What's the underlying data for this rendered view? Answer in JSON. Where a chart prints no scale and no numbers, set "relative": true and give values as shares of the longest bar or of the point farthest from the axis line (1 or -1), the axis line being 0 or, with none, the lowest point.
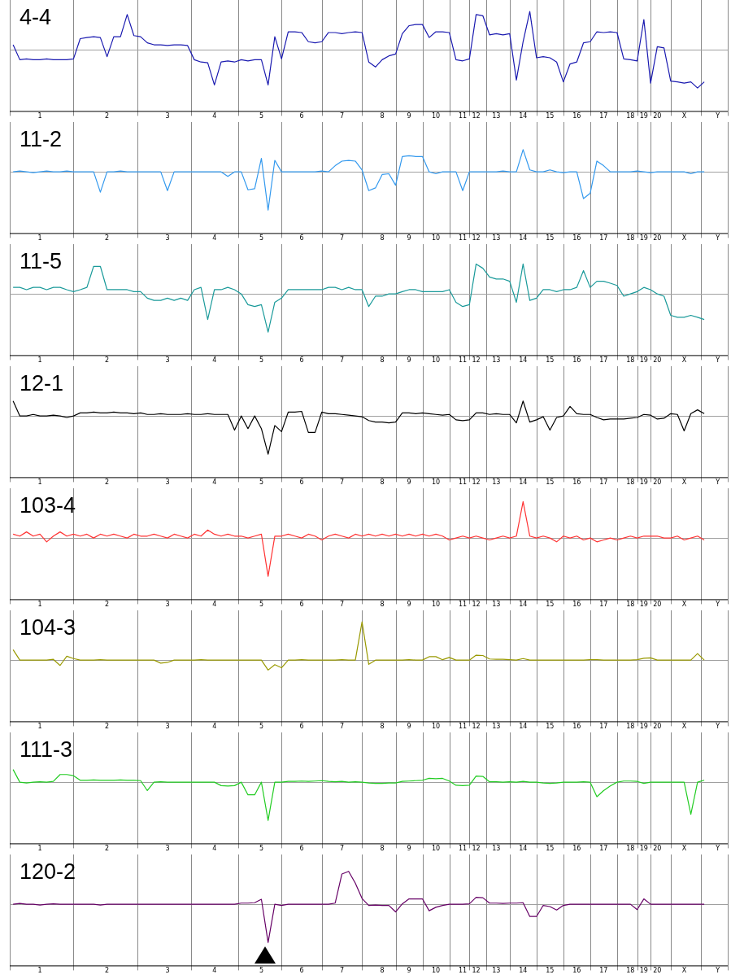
{
  "chart_data": [
    {
      "type": "line",
      "title": "4-4",
      "relative": true,
      "categories": [
        null,
        null,
        null,
        null,
        "1",
        null,
        null,
        null,
        null,
        null,
        null,
        null,
        null,
        null,
        "2",
        null,
        null,
        null,
        null,
        null,
        null,
        null,
        null,
        "3",
        null,
        null,
        null,
        null,
        null,
        null,
        "4",
        null,
        null,
        null,
        null,
        null,
        null,
        "5",
        null,
        null,
        null,
        null,
        null,
        "6",
        null,
        null,
        null,
        null,
        null,
        "7",
        null,
        null,
        null,
        null,
        null,
        "8",
        null,
        null,
        null,
        "9",
        null,
        null,
        null,
        "10",
        null,
        null,
        null,
        "11",
        null,
        "12",
        null,
        null,
        "13",
        null,
        null,
        null,
        "14",
        null,
        null,
        null,
        "15",
        null,
        null,
        null,
        "16",
        null,
        null,
        null,
        "17",
        null,
        null,
        null,
        "18",
        null,
        "19",
        null,
        "20",
        null,
        null,
        null,
        "X",
        null,
        null,
        null,
        null,
        "Y",
        null
      ],
      "series": [
        {
          "color": "#1a1ab0",
          "values": [
            0.13,
            -0.26,
            -0.24,
            -0.26,
            -0.26,
            -0.24,
            -0.26,
            -0.26,
            -0.26,
            -0.24,
            0.29,
            0.32,
            0.34,
            0.32,
            -0.18,
            0.34,
            0.34,
            0.92,
            0.37,
            0.34,
            0.18,
            0.13,
            0.13,
            0.11,
            0.13,
            0.13,
            0.11,
            -0.26,
            -0.32,
            -0.34,
            -0.92,
            -0.32,
            -0.29,
            -0.32,
            -0.26,
            -0.29,
            -0.26,
            -0.26,
            -0.92,
            0.34,
            -0.24,
            0.47,
            0.47,
            0.45,
            0.21,
            0.18,
            0.21,
            0.45,
            0.45,
            0.42,
            0.45,
            0.47,
            0.45,
            -0.32,
            -0.45,
            -0.26,
            -0.16,
            -0.11,
            0.42,
            0.63,
            0.66,
            0.66,
            0.32,
            0.47,
            0.47,
            0.45,
            -0.26,
            -0.29,
            -0.24,
            0.92,
            0.89,
            0.39,
            0.42,
            0.39,
            0.42,
            -0.79,
            0.21,
            1,
            -0.21,
            -0.18,
            -0.21,
            -0.32,
            -0.84,
            -0.37,
            -0.32,
            0.18,
            0.21,
            0.47,
            0.45,
            0.47,
            0.45,
            -0.24,
            -0.26,
            -0.29,
            0.79,
            -0.87,
            0.08,
            0.05,
            -0.82,
            -0.84,
            -0.87,
            -0.84,
            -1,
            -0.84,
            null,
            null,
            null
          ]
        }
      ]
    },
    {
      "type": "line",
      "title": "11-2",
      "relative": true,
      "categories": [
        null,
        null,
        null,
        null,
        "1",
        null,
        null,
        null,
        null,
        null,
        null,
        null,
        null,
        null,
        "2",
        null,
        null,
        null,
        null,
        null,
        null,
        null,
        null,
        "3",
        null,
        null,
        null,
        null,
        null,
        null,
        "4",
        null,
        null,
        null,
        null,
        null,
        null,
        "5",
        null,
        null,
        null,
        null,
        null,
        "6",
        null,
        null,
        null,
        null,
        null,
        "7",
        null,
        null,
        null,
        null,
        null,
        "8",
        null,
        null,
        null,
        "9",
        null,
        null,
        null,
        "10",
        null,
        null,
        null,
        "11",
        null,
        "12",
        null,
        null,
        "13",
        null,
        null,
        null,
        "14",
        null,
        null,
        null,
        "15",
        null,
        null,
        null,
        "16",
        null,
        null,
        null,
        "17",
        null,
        null,
        null,
        "18",
        null,
        "19",
        null,
        "20",
        null,
        null,
        null,
        "X",
        null,
        null,
        null,
        null,
        "Y",
        null
      ],
      "series": [
        {
          "color": "#3399ee",
          "values": [
            0,
            0.02,
            0,
            -0.02,
            0,
            0.02,
            0,
            0,
            0.02,
            0,
            0,
            0,
            0,
            -0.53,
            0,
            0,
            0.02,
            0,
            0,
            0,
            0,
            0,
            0,
            -0.49,
            0,
            0,
            0,
            0,
            0,
            0,
            0,
            0,
            -0.12,
            0,
            0,
            -0.47,
            -0.44,
            0.35,
            -1,
            0.3,
            0,
            0,
            0,
            0,
            0,
            0,
            0.02,
            0,
            0.16,
            0.28,
            0.3,
            0.28,
            0.05,
            -0.49,
            -0.42,
            -0.07,
            -0.05,
            -0.35,
            0.4,
            0.42,
            0.4,
            0.4,
            0,
            -0.05,
            0,
            0,
            0,
            -0.49,
            0,
            0,
            0,
            0,
            0,
            0.02,
            0,
            0,
            0.58,
            0.05,
            0,
            0,
            0.05,
            0,
            -0.02,
            0,
            0,
            -0.7,
            -0.56,
            0.28,
            0.16,
            0,
            0,
            0,
            0,
            0.02,
            0,
            -0.02,
            0,
            0,
            0,
            0,
            0,
            -0.05,
            0,
            0,
            null,
            null,
            null
          ]
        }
      ]
    },
    {
      "type": "line",
      "title": "11-5",
      "relative": true,
      "categories": [
        null,
        null,
        null,
        null,
        "1",
        null,
        null,
        null,
        null,
        null,
        null,
        null,
        null,
        null,
        "2",
        null,
        null,
        null,
        null,
        null,
        null,
        null,
        null,
        "3",
        null,
        null,
        null,
        null,
        null,
        null,
        "4",
        null,
        null,
        null,
        null,
        null,
        null,
        "5",
        null,
        null,
        null,
        null,
        null,
        "6",
        null,
        null,
        null,
        null,
        null,
        "7",
        null,
        null,
        null,
        null,
        null,
        "8",
        null,
        null,
        null,
        "9",
        null,
        null,
        null,
        "10",
        null,
        null,
        null,
        "11",
        null,
        "12",
        null,
        null,
        "13",
        null,
        null,
        null,
        "14",
        null,
        null,
        null,
        "15",
        null,
        null,
        null,
        "16",
        null,
        null,
        null,
        "17",
        null,
        null,
        null,
        "18",
        null,
        "19",
        null,
        "20",
        null,
        null,
        null,
        "X",
        null,
        null,
        null,
        null,
        "Y",
        null
      ],
      "series": [
        {
          "color": "#1a9a9a",
          "values": [
            0.17,
            0.17,
            0.11,
            0.17,
            0.17,
            0.11,
            0.17,
            0.17,
            0.11,
            0.06,
            0.11,
            0.17,
            0.72,
            0.72,
            0.11,
            0.11,
            0.11,
            0.11,
            0.06,
            0.06,
            -0.11,
            -0.17,
            -0.17,
            -0.11,
            -0.17,
            -0.11,
            -0.17,
            0.11,
            0.17,
            -0.67,
            0.11,
            0.11,
            0.17,
            0.11,
            0,
            -0.28,
            -0.33,
            -0.28,
            -1,
            -0.22,
            -0.11,
            0.11,
            0.11,
            0.11,
            0.11,
            0.11,
            0.11,
            0.17,
            0.17,
            0.11,
            0.17,
            0.11,
            0.11,
            -0.33,
            -0.06,
            -0.06,
            0,
            0,
            0.06,
            0.11,
            0.11,
            0.06,
            0.06,
            0.06,
            0.06,
            0.11,
            -0.22,
            -0.33,
            -0.28,
            0.78,
            0.67,
            0.44,
            0.39,
            0.39,
            0.33,
            -0.22,
            0.78,
            -0.17,
            -0.11,
            0.11,
            0.11,
            0.06,
            0.11,
            0.11,
            0.17,
            0.61,
            0.17,
            0.33,
            0.33,
            0.28,
            0.22,
            -0.06,
            0,
            0.06,
            0.17,
            0.11,
            0,
            -0.06,
            -0.56,
            -0.61,
            -0.61,
            -0.56,
            -0.61,
            -0.67,
            null,
            null,
            null
          ]
        }
      ]
    },
    {
      "type": "line",
      "title": "12-1",
      "relative": true,
      "categories": [
        null,
        null,
        null,
        null,
        "1",
        null,
        null,
        null,
        null,
        null,
        null,
        null,
        null,
        null,
        "2",
        null,
        null,
        null,
        null,
        null,
        null,
        null,
        null,
        "3",
        null,
        null,
        null,
        null,
        null,
        null,
        "4",
        null,
        null,
        null,
        null,
        null,
        null,
        "5",
        null,
        null,
        null,
        null,
        null,
        "6",
        null,
        null,
        null,
        null,
        null,
        "7",
        null,
        null,
        null,
        null,
        null,
        "8",
        null,
        null,
        null,
        "9",
        null,
        null,
        null,
        "10",
        null,
        null,
        null,
        "11",
        null,
        "12",
        null,
        null,
        "13",
        null,
        null,
        null,
        "14",
        null,
        null,
        null,
        "15",
        null,
        null,
        null,
        "16",
        null,
        null,
        null,
        "17",
        null,
        null,
        null,
        "18",
        null,
        "19",
        null,
        "20",
        null,
        null,
        null,
        "X",
        null,
        null,
        null,
        null,
        "Y",
        null
      ],
      "series": [
        {
          "color": "#000000",
          "values": [
            0.39,
            0,
            0,
            0.04,
            0,
            0,
            0.02,
            0,
            -0.04,
            0,
            0.08,
            0.08,
            0.1,
            0.08,
            0.08,
            0.1,
            0.08,
            0.08,
            0.06,
            0.08,
            0.04,
            0.04,
            0.06,
            0.04,
            0.04,
            0.04,
            0.06,
            0.04,
            0.04,
            0.06,
            0.04,
            0.04,
            0.04,
            -0.37,
            0,
            -0.33,
            0,
            -0.33,
            -1,
            -0.25,
            -0.41,
            0.1,
            0.1,
            0.12,
            -0.43,
            -0.43,
            0.1,
            0.06,
            0.06,
            0.04,
            0.02,
            0,
            -0.02,
            -0.12,
            -0.16,
            -0.16,
            -0.18,
            -0.16,
            0.08,
            0.08,
            0.06,
            0.08,
            0.06,
            0.04,
            0.02,
            0.04,
            -0.1,
            -0.12,
            -0.1,
            0.08,
            0.08,
            0.04,
            0.06,
            0.04,
            0.04,
            -0.18,
            0.39,
            -0.16,
            -0.1,
            -0.02,
            -0.37,
            -0.04,
            0,
            0.25,
            0.06,
            0.04,
            0.04,
            -0.04,
            -0.1,
            -0.08,
            -0.08,
            -0.08,
            -0.06,
            -0.04,
            0.04,
            0.02,
            -0.08,
            -0.06,
            0.06,
            0.04,
            -0.39,
            0.06,
            0.16,
            0.06,
            null,
            null,
            null
          ]
        }
      ]
    },
    {
      "type": "line",
      "title": "103-4",
      "relative": true,
      "categories": [
        null,
        null,
        null,
        null,
        "1",
        null,
        null,
        null,
        null,
        null,
        null,
        null,
        null,
        null,
        "2",
        null,
        null,
        null,
        null,
        null,
        null,
        null,
        null,
        "3",
        null,
        null,
        null,
        null,
        null,
        null,
        "4",
        null,
        null,
        null,
        null,
        null,
        null,
        "5",
        null,
        null,
        null,
        null,
        null,
        "6",
        null,
        null,
        null,
        null,
        null,
        "7",
        null,
        null,
        null,
        null,
        null,
        "8",
        null,
        null,
        null,
        "9",
        null,
        null,
        null,
        "10",
        null,
        null,
        null,
        "11",
        null,
        "12",
        null,
        null,
        "13",
        null,
        null,
        null,
        "14",
        null,
        null,
        null,
        "15",
        null,
        null,
        null,
        "16",
        null,
        null,
        null,
        "17",
        null,
        null,
        null,
        "18",
        null,
        "19",
        null,
        "20",
        null,
        null,
        null,
        "X",
        null,
        null,
        null,
        null,
        "Y",
        null
      ],
      "series": [
        {
          "color": "#ff3333",
          "values": [
            0.1,
            0.05,
            0.16,
            0.05,
            0.1,
            -0.1,
            0.05,
            0.16,
            0.05,
            0.1,
            0.05,
            0.1,
            0,
            0.1,
            0.05,
            0.1,
            0.05,
            0,
            0.1,
            0.05,
            0.05,
            0.1,
            0.05,
            0,
            0.1,
            0.05,
            0,
            0.1,
            0.05,
            0.21,
            0.1,
            0.05,
            0.1,
            0.05,
            0.05,
            0,
            0.05,
            0.1,
            -1,
            0.05,
            0.05,
            0.1,
            0.05,
            0,
            0.1,
            0.05,
            -0.05,
            0.05,
            0.1,
            0.05,
            0,
            0.1,
            0.05,
            0.1,
            0.05,
            0.1,
            0.05,
            0.1,
            0.05,
            0.1,
            0.05,
            0.1,
            0.05,
            0.1,
            0.05,
            -0.05,
            0,
            0.05,
            0,
            0.05,
            0,
            -0.05,
            0,
            0.05,
            0,
            0.05,
            0.95,
            0.05,
            0,
            0.05,
            0,
            -0.1,
            0.05,
            0,
            0.05,
            -0.05,
            0,
            -0.1,
            -0.05,
            0,
            -0.05,
            0,
            0.05,
            0,
            0.05,
            0.05,
            0.05,
            0,
            0,
            0.05,
            -0.05,
            0,
            0.05,
            -0.05,
            null,
            null,
            null
          ]
        }
      ]
    },
    {
      "type": "line",
      "title": "104-3",
      "relative": true,
      "categories": [
        null,
        null,
        null,
        null,
        "1",
        null,
        null,
        null,
        null,
        null,
        null,
        null,
        null,
        null,
        "2",
        null,
        null,
        null,
        null,
        null,
        null,
        null,
        null,
        "3",
        null,
        null,
        null,
        null,
        null,
        null,
        "4",
        null,
        null,
        null,
        null,
        null,
        null,
        "5",
        null,
        null,
        null,
        null,
        null,
        "6",
        null,
        null,
        null,
        null,
        null,
        "7",
        null,
        null,
        null,
        null,
        null,
        "8",
        null,
        null,
        null,
        "9",
        null,
        null,
        null,
        "10",
        null,
        null,
        null,
        "11",
        null,
        "12",
        null,
        null,
        "13",
        null,
        null,
        null,
        "14",
        null,
        null,
        null,
        "15",
        null,
        null,
        null,
        "16",
        null,
        null,
        null,
        "17",
        null,
        null,
        null,
        "18",
        null,
        "19",
        null,
        "20",
        null,
        null,
        null,
        "X",
        null,
        null,
        null,
        null,
        "Y",
        null
      ],
      "series": [
        {
          "color": "#999900",
          "values": [
            0.27,
            0,
            0,
            0,
            0,
            0,
            0.02,
            -0.14,
            0.1,
            0.04,
            0,
            0,
            0,
            0.01,
            0,
            0,
            0,
            0,
            0,
            0,
            0,
            0,
            -0.08,
            -0.06,
            0,
            0,
            0,
            0,
            0.01,
            0,
            0,
            0,
            0,
            0,
            0,
            0,
            0,
            0,
            -0.26,
            -0.12,
            -0.2,
            0,
            0,
            0.01,
            0,
            0,
            0,
            0,
            0,
            0.01,
            0,
            0,
            1,
            -0.11,
            0,
            0,
            0,
            0,
            0,
            0.01,
            0,
            0,
            0.09,
            0.09,
            0.01,
            0.07,
            0,
            0,
            0,
            0.13,
            0.12,
            0.03,
            0.02,
            0.02,
            0.01,
            0,
            0.04,
            0,
            0,
            0,
            0,
            0,
            0,
            0,
            0,
            0,
            0.01,
            0.01,
            0,
            0,
            0,
            0,
            0,
            0.01,
            0.05,
            0.06,
            0,
            0,
            0,
            0,
            0,
            0,
            0.17,
            0,
            null,
            null,
            null
          ]
        }
      ]
    },
    {
      "type": "line",
      "title": "111-3",
      "relative": true,
      "categories": [
        null,
        null,
        null,
        null,
        "1",
        null,
        null,
        null,
        null,
        null,
        null,
        null,
        null,
        null,
        "2",
        null,
        null,
        null,
        null,
        null,
        null,
        null,
        null,
        "3",
        null,
        null,
        null,
        null,
        null,
        null,
        "4",
        null,
        null,
        null,
        null,
        null,
        null,
        "5",
        null,
        null,
        null,
        null,
        null,
        "6",
        null,
        null,
        null,
        null,
        null,
        "7",
        null,
        null,
        null,
        null,
        null,
        "8",
        null,
        null,
        null,
        "9",
        null,
        null,
        null,
        "10",
        null,
        null,
        null,
        "11",
        null,
        "12",
        null,
        null,
        "13",
        null,
        null,
        null,
        "14",
        null,
        null,
        null,
        "15",
        null,
        null,
        null,
        "16",
        null,
        null,
        null,
        "17",
        null,
        null,
        null,
        "18",
        null,
        "19",
        null,
        "20",
        null,
        null,
        null,
        "X",
        null,
        null,
        null,
        null,
        "Y",
        null
      ],
      "series": [
        {
          "color": "#22cc22",
          "values": [
            0.33,
            0,
            -0.02,
            0,
            0.01,
            0,
            0.02,
            0.2,
            0.2,
            0.17,
            0.05,
            0.05,
            0.06,
            0.05,
            0.05,
            0.05,
            0.06,
            0.05,
            0.05,
            0.04,
            -0.22,
            0,
            0.01,
            0,
            0,
            0,
            0,
            0,
            0,
            0,
            0,
            -0.09,
            -0.1,
            -0.09,
            0,
            -0.33,
            -0.33,
            0,
            -1,
            0,
            0,
            0.02,
            0.02,
            0.03,
            0.02,
            0.03,
            0.04,
            0.02,
            0.01,
            0.02,
            0,
            0.01,
            0,
            -0.02,
            -0.03,
            -0.03,
            -0.02,
            -0.02,
            0.02,
            0.03,
            0.04,
            0.05,
            0.1,
            0.09,
            0.1,
            0.03,
            -0.08,
            -0.09,
            -0.08,
            0.16,
            0.15,
            0.01,
            0.01,
            0,
            0.01,
            0,
            0.02,
            0,
            0,
            -0.02,
            -0.03,
            -0.02,
            0,
            0,
            0,
            0.01,
            0,
            -0.38,
            -0.22,
            -0.1,
            0,
            0.03,
            0.03,
            0.02,
            -0.03,
            0,
            0,
            0,
            0,
            0,
            0,
            -0.84,
            0,
            0.05,
            null,
            null,
            null
          ]
        }
      ]
    },
    {
      "type": "line",
      "title": "120-2",
      "relative": true,
      "categories": [
        null,
        null,
        null,
        null,
        "1",
        null,
        null,
        null,
        null,
        null,
        null,
        null,
        null,
        null,
        "2",
        null,
        null,
        null,
        null,
        null,
        null,
        null,
        null,
        "3",
        null,
        null,
        null,
        null,
        null,
        null,
        "4",
        null,
        null,
        null,
        null,
        null,
        null,
        "5",
        null,
        null,
        null,
        null,
        null,
        "6",
        null,
        null,
        null,
        null,
        null,
        "7",
        null,
        null,
        null,
        null,
        null,
        "8",
        null,
        null,
        null,
        "9",
        null,
        null,
        null,
        "10",
        null,
        null,
        null,
        "11",
        null,
        "12",
        null,
        null,
        "13",
        null,
        null,
        null,
        "14",
        null,
        null,
        null,
        "15",
        null,
        null,
        null,
        "16",
        null,
        null,
        null,
        "17",
        null,
        null,
        null,
        "18",
        null,
        "19",
        null,
        "20",
        null,
        null,
        null,
        "X",
        null,
        null,
        null,
        null,
        "Y",
        null
      ],
      "series": [
        {
          "color": "#660066",
          "values": [
            0,
            0.02,
            0,
            0,
            -0.02,
            0,
            0.01,
            0,
            0,
            0,
            0,
            0,
            0,
            -0.02,
            0,
            0,
            0,
            0,
            0,
            0,
            0,
            0,
            0,
            0,
            0,
            0,
            0,
            0,
            0,
            0,
            0,
            0,
            0,
            0,
            0.03,
            0.03,
            0.04,
            0.13,
            -1,
            0,
            -0.03,
            0,
            0,
            0,
            0,
            0,
            0,
            0,
            0.03,
            0.79,
            0.86,
            0.55,
            0.15,
            -0.03,
            -0.02,
            -0.03,
            -0.03,
            -0.2,
            0.01,
            0.14,
            0.14,
            0.14,
            -0.17,
            -0.08,
            -0.03,
            0,
            0,
            0,
            0.01,
            0.18,
            0.17,
            0.03,
            0.03,
            0.02,
            0.03,
            0.03,
            0.04,
            -0.32,
            -0.32,
            -0.03,
            -0.06,
            -0.15,
            -0.03,
            0,
            0,
            0,
            0,
            0,
            0,
            0,
            0,
            0,
            0,
            -0.14,
            0.14,
            0,
            0,
            0,
            0,
            0,
            0,
            0,
            0,
            0,
            null,
            null,
            null
          ]
        }
      ]
    }
  ]
}
